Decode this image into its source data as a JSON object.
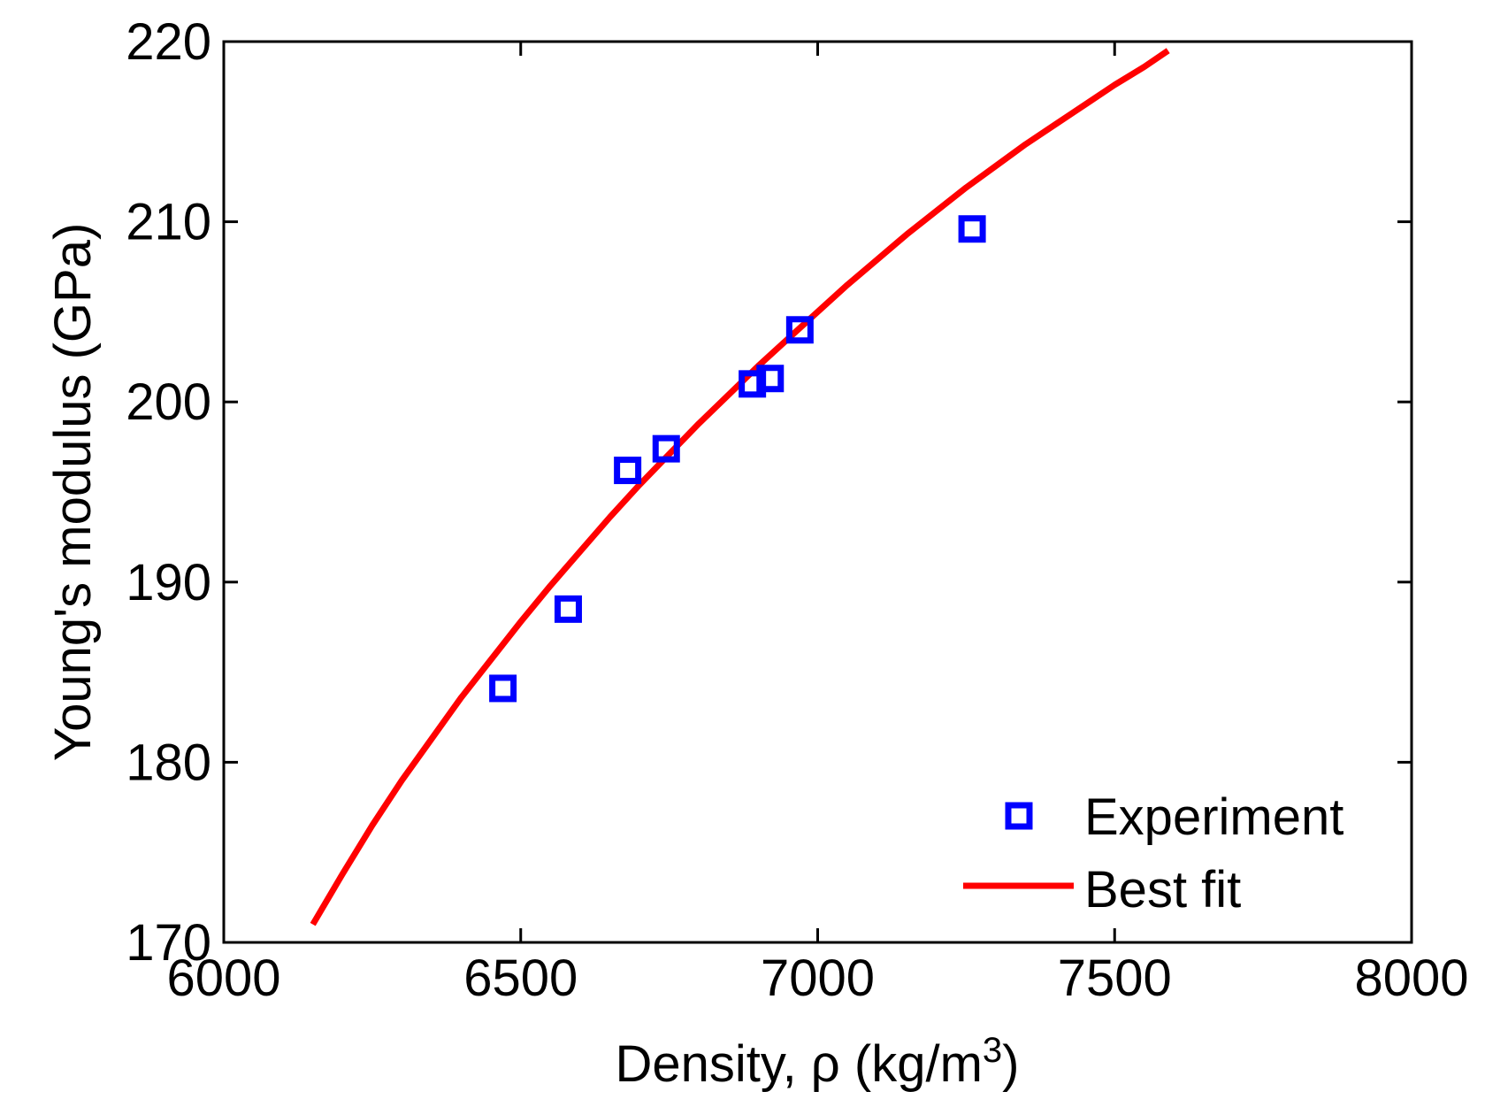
{
  "chart_data": {
    "type": "scatter",
    "title": "",
    "xlabel": "Density, ρ (kg/m",
    "xlabel_superscript": "3",
    "xlabel_suffix": ")",
    "ylabel": "Young's modulus (GPa)",
    "xlim": [
      6000,
      8000
    ],
    "ylim": [
      170,
      220
    ],
    "xticks": [
      6000,
      6500,
      7000,
      7500,
      8000
    ],
    "yticks": [
      170,
      180,
      190,
      200,
      210,
      220
    ],
    "grid": false,
    "legend_position": "bottom-right",
    "colors": {
      "experiment": "#0000ff",
      "fit": "#ff0000"
    },
    "series": [
      {
        "name": "Experiment",
        "kind": "scatter",
        "marker": "square",
        "x": [
          6470,
          6580,
          6680,
          6745,
          6890,
          6920,
          6970,
          7260
        ],
        "y": [
          184.1,
          188.5,
          196.2,
          197.4,
          201.0,
          201.3,
          204.0,
          209.6
        ]
      },
      {
        "name": "Best fit",
        "kind": "line",
        "x": [
          6150,
          6200,
          6250,
          6300,
          6350,
          6400,
          6450,
          6500,
          6550,
          6600,
          6650,
          6700,
          6750,
          6800,
          6850,
          6900,
          6950,
          7000,
          7050,
          7100,
          7150,
          7200,
          7250,
          7300,
          7350,
          7400,
          7450,
          7500,
          7550,
          7590
        ],
        "y": [
          171.0,
          173.8,
          176.5,
          179.0,
          181.3,
          183.6,
          185.7,
          187.8,
          189.8,
          191.7,
          193.6,
          195.4,
          197.1,
          198.8,
          200.4,
          202.0,
          203.5,
          205.0,
          206.5,
          207.9,
          209.3,
          210.6,
          211.9,
          213.1,
          214.3,
          215.4,
          216.5,
          217.6,
          218.6,
          219.5
        ]
      }
    ]
  }
}
